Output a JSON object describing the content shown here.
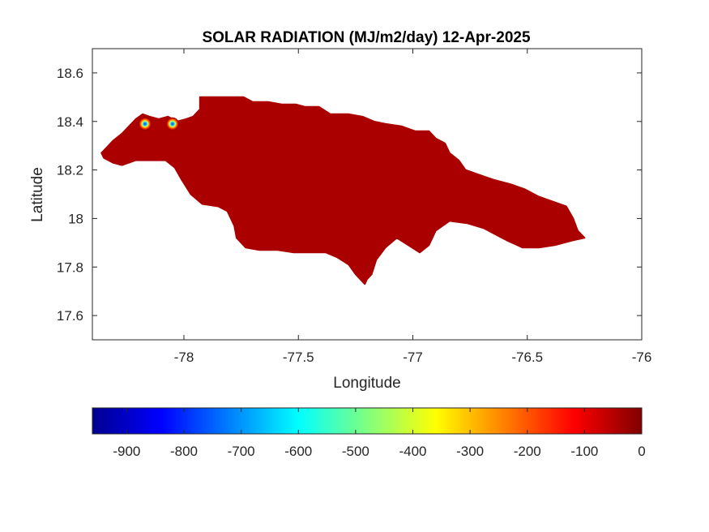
{
  "chart_data": {
    "type": "heatmap",
    "title": "SOLAR RADIATION (MJ/m2/day) 12-Apr-2025",
    "xlabel": "Longitude",
    "ylabel": "Latitude",
    "xlim": [
      -78.4,
      -76
    ],
    "ylim": [
      17.5,
      18.7
    ],
    "xticks": [
      -78,
      -77.5,
      -77,
      -76.5,
      -76
    ],
    "xtick_labels": [
      "-78",
      "-77.5",
      "-77",
      "-76.5",
      "-76"
    ],
    "yticks": [
      17.6,
      17.8,
      18,
      18.2,
      18.4,
      18.6
    ],
    "ytick_labels": [
      "17.6",
      "17.8",
      "18",
      "18.2",
      "18.4",
      "18.6"
    ],
    "fill_value": -5,
    "fill_color": "#aa0000",
    "anomalies": [
      {
        "lon": -78.17,
        "lat": 18.39,
        "value": -960
      },
      {
        "lon": -78.05,
        "lat": 18.39,
        "value": -960
      }
    ],
    "region_outline_lonlat": [
      [
        -78.36,
        18.27
      ],
      [
        -78.33,
        18.3
      ],
      [
        -78.31,
        18.32
      ],
      [
        -78.27,
        18.35
      ],
      [
        -78.24,
        18.38
      ],
      [
        -78.21,
        18.41
      ],
      [
        -78.18,
        18.43
      ],
      [
        -78.15,
        18.42
      ],
      [
        -78.11,
        18.41
      ],
      [
        -78.07,
        18.42
      ],
      [
        -78.03,
        18.4
      ],
      [
        -77.99,
        18.41
      ],
      [
        -77.96,
        18.42
      ],
      [
        -77.93,
        18.45
      ],
      [
        -77.93,
        18.5
      ],
      [
        -77.83,
        18.5
      ],
      [
        -77.74,
        18.5
      ],
      [
        -77.7,
        18.48
      ],
      [
        -77.63,
        18.48
      ],
      [
        -77.57,
        18.47
      ],
      [
        -77.51,
        18.47
      ],
      [
        -77.47,
        18.46
      ],
      [
        -77.41,
        18.46
      ],
      [
        -77.36,
        18.43
      ],
      [
        -77.28,
        18.43
      ],
      [
        -77.22,
        18.42
      ],
      [
        -77.17,
        18.4
      ],
      [
        -77.12,
        18.39
      ],
      [
        -77.05,
        18.38
      ],
      [
        -76.99,
        18.36
      ],
      [
        -76.93,
        18.36
      ],
      [
        -76.9,
        18.33
      ],
      [
        -76.86,
        18.31
      ],
      [
        -76.84,
        18.27
      ],
      [
        -76.8,
        18.24
      ],
      [
        -76.77,
        18.2
      ],
      [
        -76.71,
        18.18
      ],
      [
        -76.65,
        18.16
      ],
      [
        -76.57,
        18.14
      ],
      [
        -76.51,
        18.12
      ],
      [
        -76.45,
        18.09
      ],
      [
        -76.39,
        18.07
      ],
      [
        -76.33,
        18.05
      ],
      [
        -76.3,
        18.0
      ],
      [
        -76.28,
        17.95
      ],
      [
        -76.25,
        17.92
      ],
      [
        -76.3,
        17.91
      ],
      [
        -76.38,
        17.89
      ],
      [
        -76.45,
        17.88
      ],
      [
        -76.52,
        17.88
      ],
      [
        -76.59,
        17.91
      ],
      [
        -76.63,
        17.93
      ],
      [
        -76.69,
        17.96
      ],
      [
        -76.76,
        17.98
      ],
      [
        -76.84,
        17.99
      ],
      [
        -76.9,
        17.95
      ],
      [
        -76.93,
        17.89
      ],
      [
        -76.97,
        17.86
      ],
      [
        -77.02,
        17.89
      ],
      [
        -77.07,
        17.92
      ],
      [
        -77.12,
        17.88
      ],
      [
        -77.16,
        17.83
      ],
      [
        -77.18,
        17.77
      ],
      [
        -77.2,
        17.75
      ],
      [
        -77.21,
        17.73
      ],
      [
        -77.25,
        17.77
      ],
      [
        -77.28,
        17.81
      ],
      [
        -77.33,
        17.84
      ],
      [
        -77.38,
        17.86
      ],
      [
        -77.45,
        17.86
      ],
      [
        -77.52,
        17.86
      ],
      [
        -77.59,
        17.87
      ],
      [
        -77.67,
        17.87
      ],
      [
        -77.73,
        17.88
      ],
      [
        -77.77,
        17.92
      ],
      [
        -77.78,
        17.97
      ],
      [
        -77.81,
        18.03
      ],
      [
        -77.85,
        18.05
      ],
      [
        -77.92,
        18.06
      ],
      [
        -77.97,
        18.1
      ],
      [
        -78.01,
        18.16
      ],
      [
        -78.04,
        18.21
      ],
      [
        -78.08,
        18.24
      ],
      [
        -78.15,
        18.24
      ],
      [
        -78.21,
        18.24
      ],
      [
        -78.27,
        18.22
      ],
      [
        -78.31,
        18.23
      ],
      [
        -78.35,
        18.25
      ]
    ],
    "colorbar": {
      "colormap": "jet",
      "position": "bottom",
      "min": -960,
      "max": 0,
      "ticks": [
        -900,
        -800,
        -700,
        -600,
        -500,
        -400,
        -300,
        -200,
        -100,
        0
      ],
      "tick_labels": [
        "-900",
        "-800",
        "-700",
        "-600",
        "-500",
        "-400",
        "-300",
        "-200",
        "-100",
        "0"
      ]
    }
  }
}
